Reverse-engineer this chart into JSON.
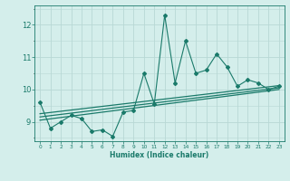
{
  "x": [
    0,
    1,
    2,
    3,
    4,
    5,
    6,
    7,
    8,
    9,
    10,
    11,
    12,
    13,
    14,
    15,
    16,
    17,
    18,
    19,
    20,
    21,
    22,
    23
  ],
  "y": [
    9.6,
    8.8,
    9.0,
    9.2,
    9.1,
    8.7,
    8.75,
    8.55,
    9.3,
    9.35,
    10.5,
    9.55,
    12.3,
    10.2,
    11.5,
    10.5,
    10.6,
    11.1,
    10.7,
    10.1,
    10.3,
    10.2,
    10.0,
    10.1
  ],
  "line_color": "#1a7a6a",
  "bg_color": "#d4eeeb",
  "grid_color": "#b8d8d5",
  "tick_color": "#1a7a6a",
  "xlabel": "Humidex (Indice chaleur)",
  "ylabel_ticks": [
    9,
    10,
    11,
    12
  ],
  "xlim": [
    -0.5,
    23.5
  ],
  "ylim": [
    8.4,
    12.6
  ],
  "trend_line_color": "#1a7a6a",
  "regression_lines": [
    {
      "x0": 0,
      "y0": 9.05,
      "x1": 23,
      "y1": 10.0
    },
    {
      "x0": 0,
      "y0": 9.15,
      "x1": 23,
      "y1": 10.05
    },
    {
      "x0": 0,
      "y0": 9.25,
      "x1": 23,
      "y1": 10.12
    }
  ]
}
